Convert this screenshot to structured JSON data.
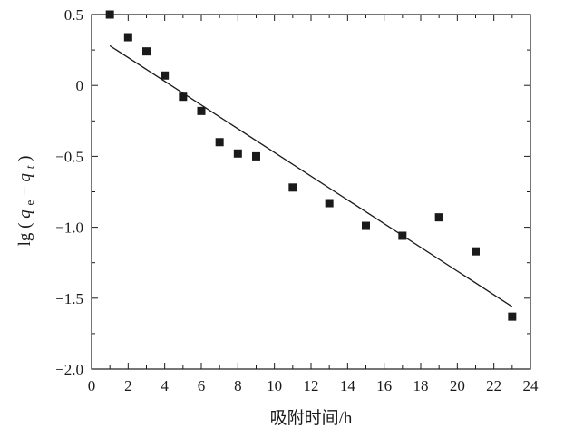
{
  "chart_data": {
    "type": "scatter",
    "title": "",
    "xlabel": "吸附时间/h",
    "ylabel": "lg (q_e−q_t)",
    "ylabel_parts": {
      "prefix": "lg",
      "open": "(",
      "q1": "q",
      "sub1": "e",
      "minus": "−",
      "q2": "q",
      "sub2": "t",
      "close": ")"
    },
    "xlim": [
      0,
      24
    ],
    "ylim": [
      -2.0,
      0.5
    ],
    "x_ticks": [
      0,
      2,
      4,
      6,
      8,
      10,
      12,
      14,
      16,
      18,
      20,
      22,
      24
    ],
    "x_tick_labels": [
      "0",
      "2",
      "4",
      "6",
      "8",
      "10",
      "12",
      "14",
      "16",
      "18",
      "20",
      "22",
      "24"
    ],
    "y_ticks": [
      0.5,
      0,
      -0.5,
      -1.0,
      -1.5,
      -2.0
    ],
    "y_tick_labels": [
      "0.5",
      "0",
      "−0.5",
      "−1.0",
      "−1.5",
      "−2.0"
    ],
    "grid": false,
    "legend": "none",
    "series": [
      {
        "marker": "square",
        "color": "#1a1a1a",
        "points": [
          {
            "x": 1,
            "y": 0.5
          },
          {
            "x": 2,
            "y": 0.34
          },
          {
            "x": 3,
            "y": 0.24
          },
          {
            "x": 4,
            "y": 0.07
          },
          {
            "x": 5,
            "y": -0.08
          },
          {
            "x": 6,
            "y": -0.18
          },
          {
            "x": 7,
            "y": -0.4
          },
          {
            "x": 8,
            "y": -0.48
          },
          {
            "x": 9,
            "y": -0.5
          },
          {
            "x": 11,
            "y": -0.72
          },
          {
            "x": 13,
            "y": -0.83
          },
          {
            "x": 15,
            "y": -0.99
          },
          {
            "x": 17,
            "y": -1.06
          },
          {
            "x": 19,
            "y": -0.93
          },
          {
            "x": 21,
            "y": -1.17
          },
          {
            "x": 23,
            "y": -1.63
          }
        ]
      }
    ],
    "fit_line": {
      "color": "#1a1a1a",
      "points": [
        {
          "x": 1,
          "y": 0.28
        },
        {
          "x": 23,
          "y": -1.56
        }
      ]
    }
  }
}
